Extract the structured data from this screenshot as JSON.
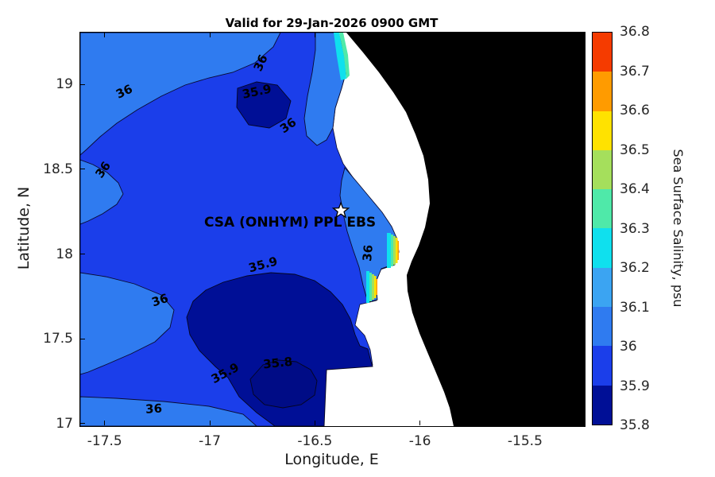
{
  "chart_data": {
    "type": "heatmap",
    "subtype": "filled-contour-salinity-map",
    "title": "Valid for 29-Jan-2026 0900 GMT",
    "xlabel": "Longitude, E",
    "ylabel": "Latitude, N",
    "xlim": [
      -17.62,
      -15.22
    ],
    "ylim": [
      16.99,
      19.31
    ],
    "xticks": [
      -17.5,
      -17,
      -16.5,
      -16,
      -15.5
    ],
    "xtick_labels": [
      "-17.5",
      "-17",
      "-16.5",
      "-16",
      "-15.5"
    ],
    "yticks": [
      17,
      17.5,
      18,
      18.5,
      19
    ],
    "ytick_labels": [
      "17",
      "17.5",
      "18",
      "18.5",
      "19"
    ],
    "grid": false,
    "contour_levels": [
      35.8,
      35.9,
      36,
      36.1,
      36.2,
      36.3,
      36.4,
      36.5,
      36.6,
      36.7,
      36.8
    ],
    "colorbar": {
      "label": "Sea Surface Salinity, psu",
      "position": "right",
      "tick_labels": [
        "36.8",
        "36.7",
        "36.6",
        "36.5",
        "36.4",
        "36.3",
        "36.2",
        "36.1",
        "36",
        "35.9",
        "35.8"
      ],
      "bands_top_to_bottom": [
        {
          "range": "36.7-36.8",
          "color": "#f53b00"
        },
        {
          "range": "36.6-36.7",
          "color": "#ff9b00"
        },
        {
          "range": "36.5-36.6",
          "color": "#ffe200"
        },
        {
          "range": "36.4-36.5",
          "color": "#a5df5c"
        },
        {
          "range": "36.3-36.4",
          "color": "#4fe9a9"
        },
        {
          "range": "36.2-36.3",
          "color": "#0fe0ee"
        },
        {
          "range": "36.1-36.2",
          "color": "#3ba4f2"
        },
        {
          "range": "36.0-36.1",
          "color": "#2f7bf0"
        },
        {
          "range": "35.9-36.0",
          "color": "#1b3eea"
        },
        {
          "range": "35.8-35.9",
          "color": "#000f96"
        }
      ]
    },
    "below_range_color": "#000c86",
    "land_color": "#000000",
    "no_data_color": "#ffffff",
    "contour_labels": [
      {
        "text": "36",
        "lon": -17.41,
        "lat": 18.96,
        "rot": -25
      },
      {
        "text": "36",
        "lon": -17.51,
        "lat": 18.5,
        "rot": -55
      },
      {
        "text": "36",
        "lon": -16.76,
        "lat": 19.13,
        "rot": -65
      },
      {
        "text": "35.9",
        "lon": -16.78,
        "lat": 18.96,
        "rot": -12
      },
      {
        "text": "36",
        "lon": -16.63,
        "lat": 18.76,
        "rot": -35
      },
      {
        "text": "36",
        "lon": -17.24,
        "lat": 17.73,
        "rot": -18
      },
      {
        "text": "35.9",
        "lon": -16.75,
        "lat": 17.94,
        "rot": -15
      },
      {
        "text": "35.8",
        "lon": -16.68,
        "lat": 17.36,
        "rot": -6
      },
      {
        "text": "35.9",
        "lon": -16.93,
        "lat": 17.3,
        "rot": -28
      },
      {
        "text": "36",
        "lon": -17.27,
        "lat": 17.09,
        "rot": -3
      },
      {
        "text": "36",
        "lon": -16.25,
        "lat": 18.01,
        "rot": -85
      }
    ],
    "station": {
      "label": "CSA (ONHYM) PPL EBS",
      "marker": "white-star",
      "lon": -16.38,
      "lat": 18.26
    }
  }
}
